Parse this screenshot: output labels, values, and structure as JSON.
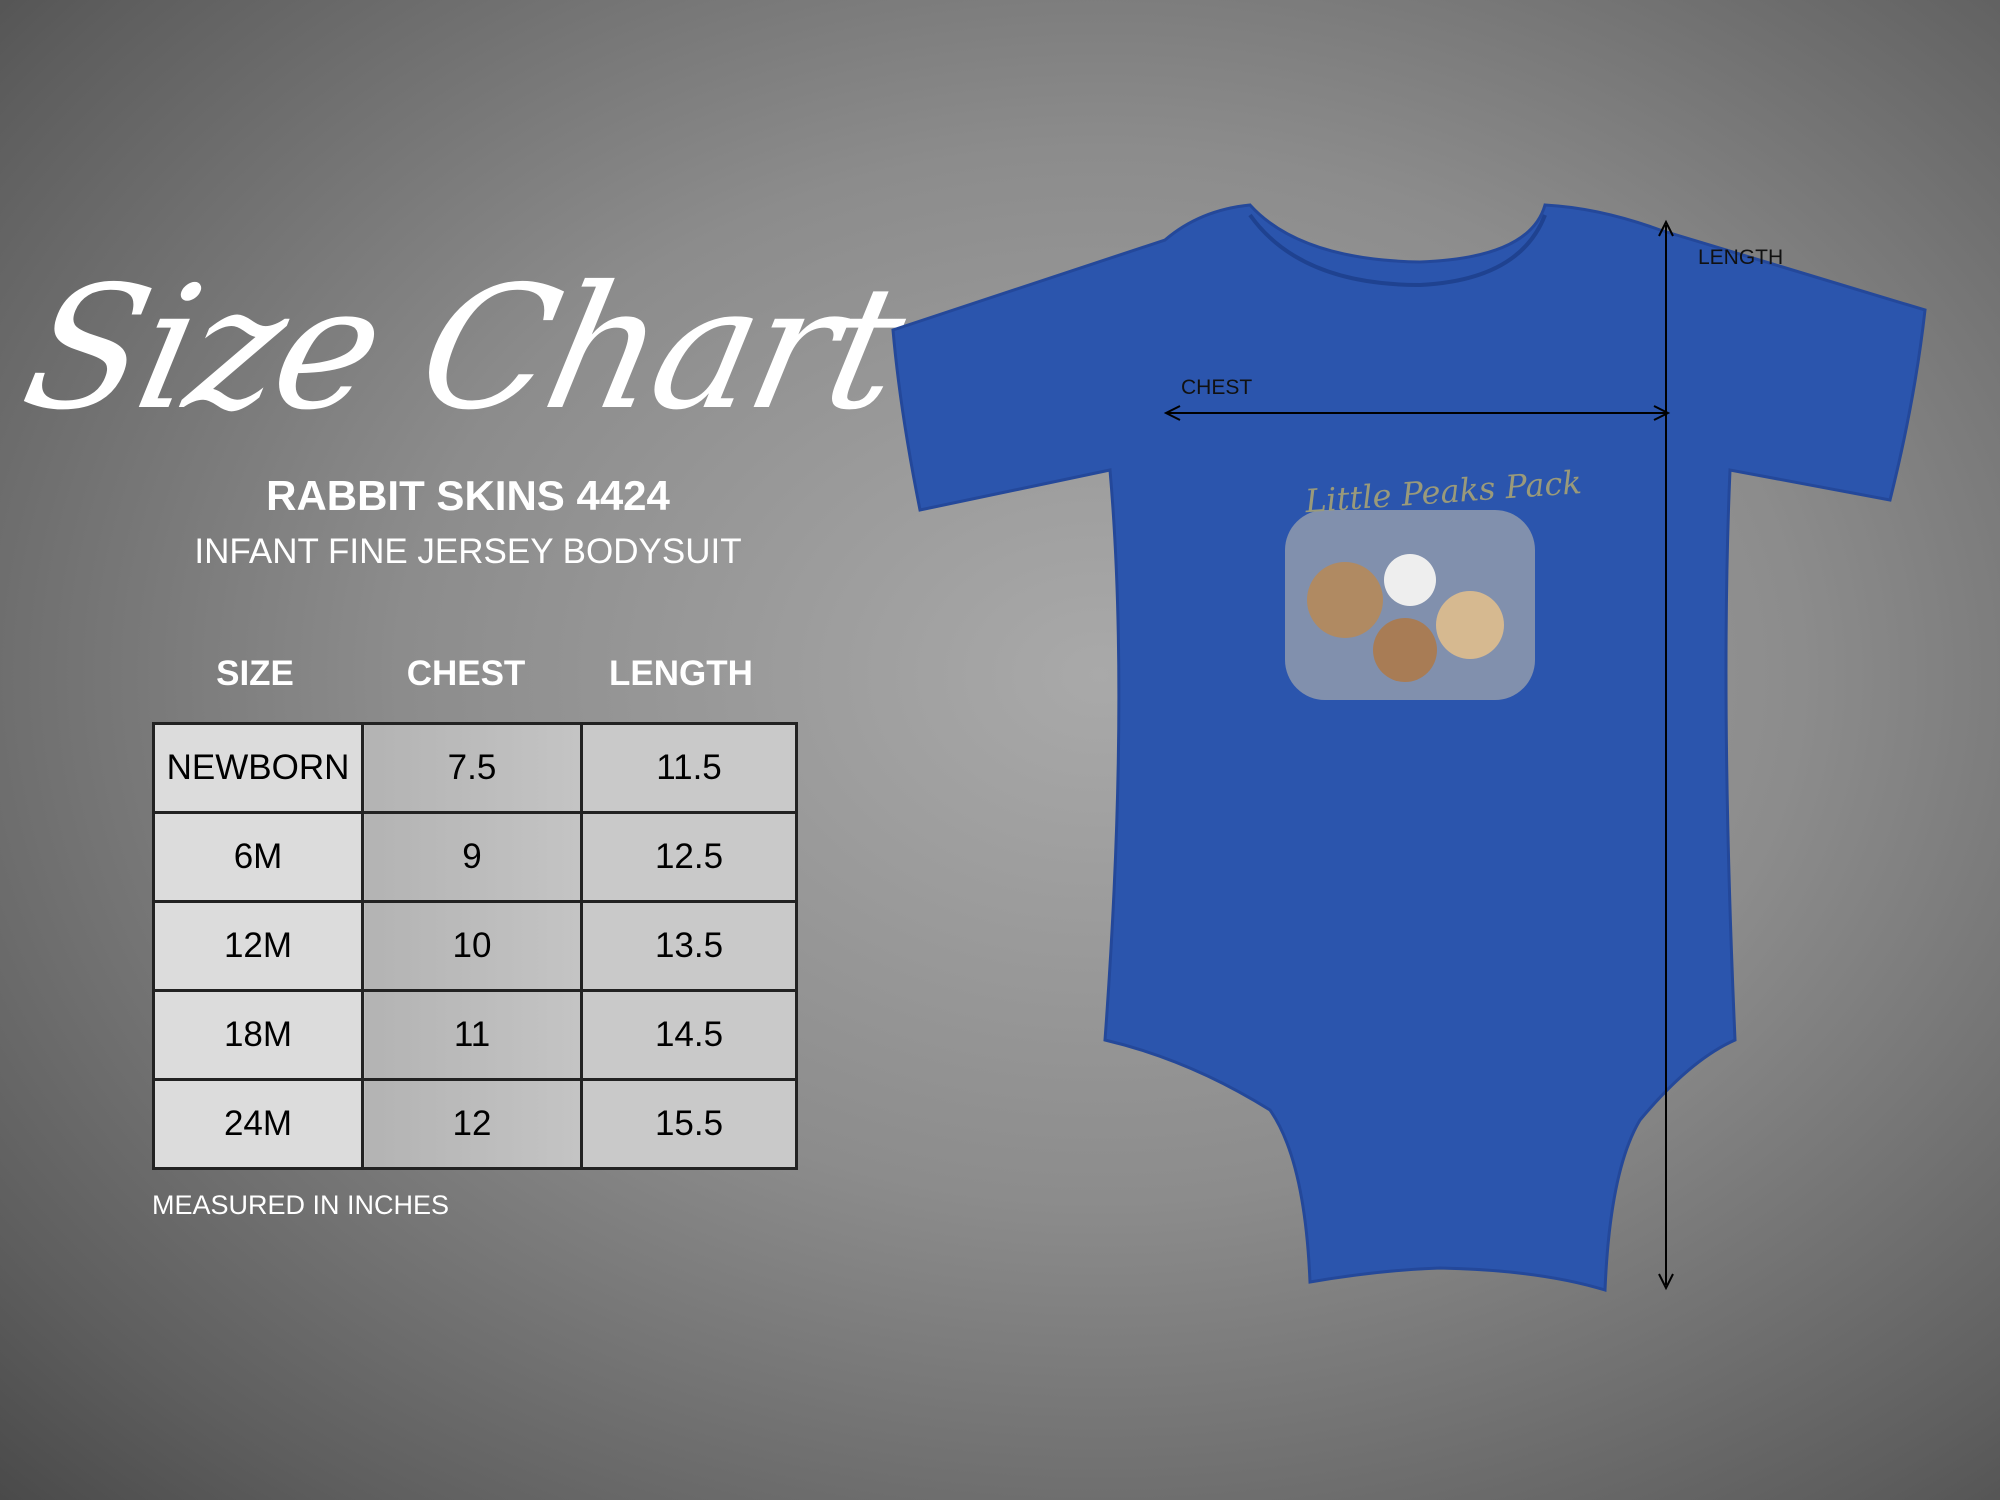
{
  "title": "Size Chart",
  "product": {
    "brand_model": "RABBIT SKINS 4424",
    "name": "INFANT FINE JERSEY BODYSUIT"
  },
  "table": {
    "headers": [
      "SIZE",
      "CHEST",
      "LENGTH"
    ],
    "rows": [
      [
        "NEWBORN",
        "7.5",
        "11.5"
      ],
      [
        "6M",
        "9",
        "12.5"
      ],
      [
        "12M",
        "10",
        "13.5"
      ],
      [
        "18M",
        "11",
        "14.5"
      ],
      [
        "24M",
        "12",
        "15.5"
      ]
    ]
  },
  "note": "MEASURED IN INCHES",
  "garment": {
    "color": "#2b55ad",
    "print_text": "Little Peaks Pack",
    "chest_label": "CHEST",
    "length_label": "LENGTH"
  }
}
